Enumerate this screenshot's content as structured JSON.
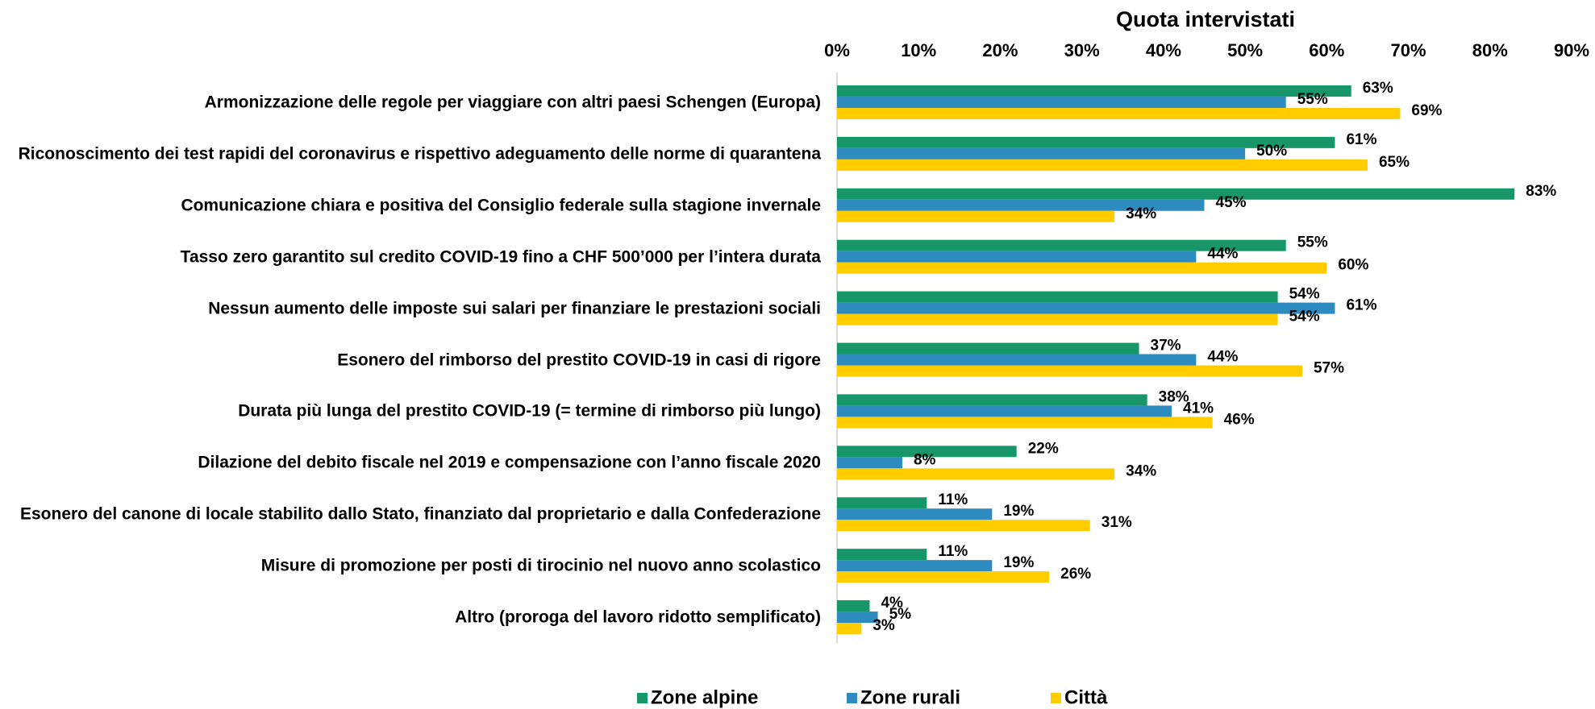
{
  "chart_data": {
    "type": "barh",
    "axis_title": "Quota intervistati",
    "categories": [
      "Armonizzazione delle regole per viaggiare con altri paesi Schengen (Europa)",
      "Riconoscimento dei test rapidi del coronavirus e rispettivo adeguamento delle norme di quarantena",
      "Comunicazione chiara e positiva del Consiglio federale sulla stagione invernale",
      "Tasso zero garantito sul credito COVID-19 fino a CHF 500’000 per l’intera durata",
      "Nessun aumento delle imposte sui salari per finanziare le prestazioni sociali",
      "Esonero del rimborso del prestito COVID-19 in casi di rigore",
      "Durata più lunga del prestito COVID-19 (= termine di rimborso più lungo)",
      "Dilazione del debito fiscale nel 2019 e compensazione con l’anno fiscale 2020",
      "Esonero del canone di locale stabilito dallo Stato, finanziato dal proprietario e dalla Confederazione",
      "Misure di promozione per posti di tirocinio nel nuovo anno scolastico",
      "Altro (proroga del lavoro ridotto semplificato)"
    ],
    "series": [
      {
        "name": "Zone alpine",
        "color": "#17966a",
        "values": [
          63,
          61,
          83,
          55,
          54,
          37,
          38,
          22,
          11,
          11,
          4
        ],
        "value_labels": [
          "63%",
          "61%",
          "83%",
          "55%",
          "54%",
          "37%",
          "38%",
          "22%",
          "11%",
          "11%",
          "4%"
        ]
      },
      {
        "name": "Zone rurali",
        "color": "#2e8bc0",
        "values": [
          55,
          50,
          45,
          44,
          61,
          44,
          41,
          8,
          19,
          19,
          5
        ],
        "value_labels": [
          "55%",
          "50%",
          "45%",
          "44%",
          "61%",
          "44%",
          "41%",
          "8%",
          "19%",
          "19%",
          "5%"
        ]
      },
      {
        "name": "Città",
        "color": "#ffcc00",
        "values": [
          69,
          65,
          34,
          60,
          54,
          57,
          46,
          34,
          31,
          26,
          3
        ],
        "value_labels": [
          "69%",
          "65%",
          "34%",
          "60%",
          "54%",
          "57%",
          "46%",
          "34%",
          "31%",
          "26%",
          "3%"
        ]
      }
    ],
    "xlim": [
      0,
      90
    ],
    "xticks": [
      {
        "value": 0,
        "label": "0%"
      },
      {
        "value": 10,
        "label": "10%"
      },
      {
        "value": 20,
        "label": "20%"
      },
      {
        "value": 30,
        "label": "30%"
      },
      {
        "value": 40,
        "label": "40%"
      },
      {
        "value": 50,
        "label": "50%"
      },
      {
        "value": 60,
        "label": "60%"
      },
      {
        "value": 70,
        "label": "70%"
      },
      {
        "value": 80,
        "label": "80%"
      },
      {
        "value": 90,
        "label": "90%"
      }
    ],
    "legend": "bottom"
  }
}
